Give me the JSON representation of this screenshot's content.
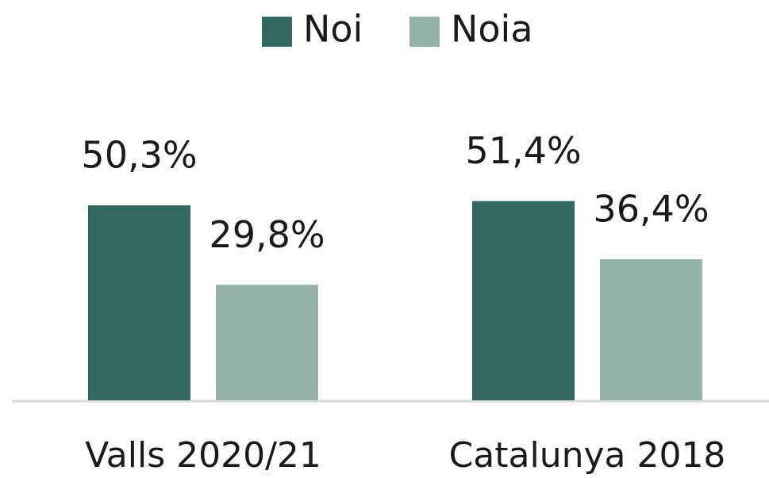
{
  "chart_data": {
    "type": "bar",
    "categories": [
      "Valls 2020/21",
      "Catalunya 2018"
    ],
    "series": [
      {
        "name": "Noi",
        "color": "#316960",
        "values": [
          50.3,
          51.4
        ],
        "value_labels": [
          "50,3%",
          "51,4%"
        ]
      },
      {
        "name": "Noia",
        "color": "#96b3ab",
        "values": [
          29.8,
          36.4
        ],
        "value_labels": [
          "29,8%",
          "36,4%"
        ]
      }
    ],
    "legend": "top"
  }
}
